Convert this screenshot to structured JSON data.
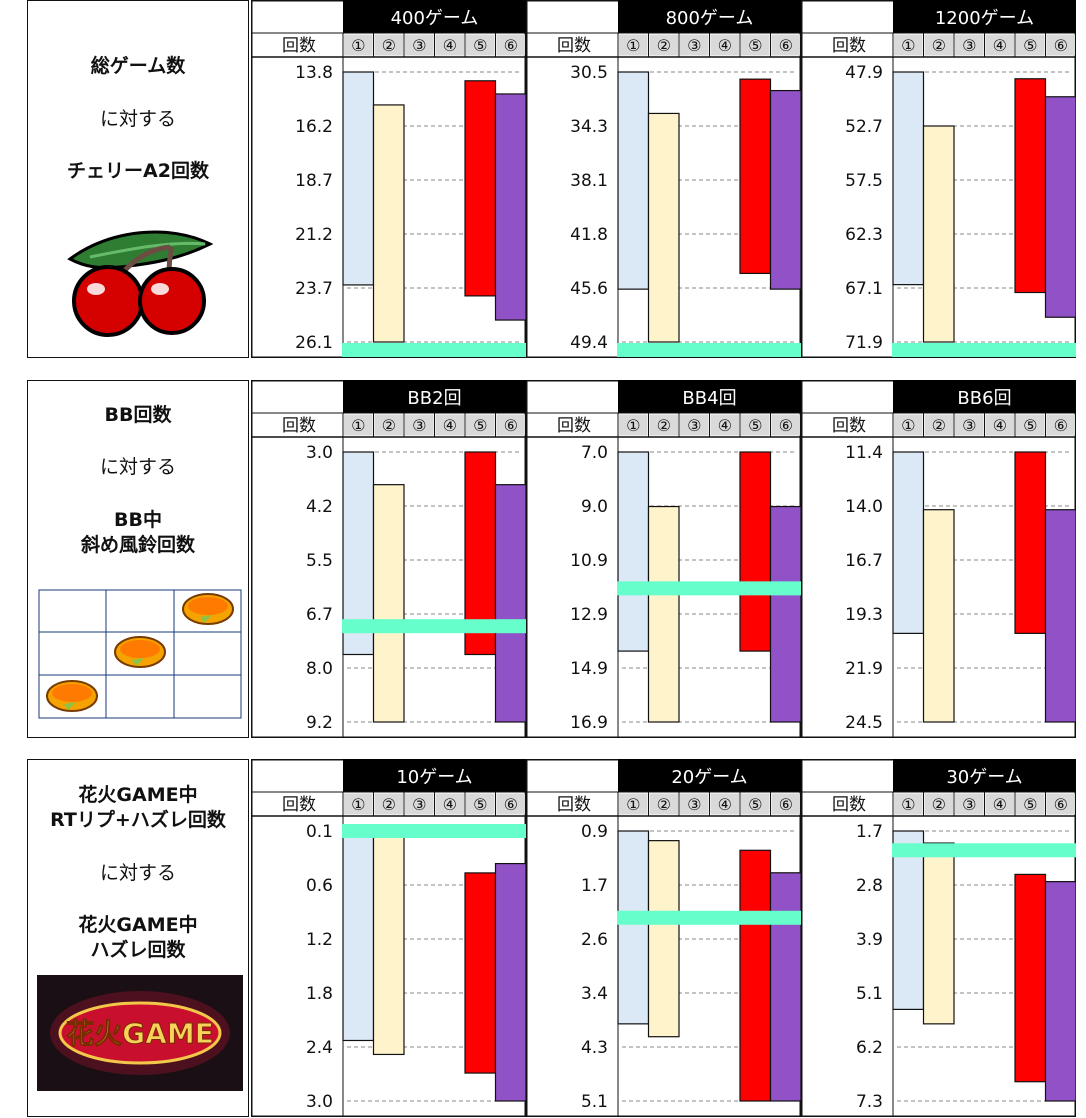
{
  "colors": {
    "setting1": "#dbe8f5",
    "setting2": "#fff3cc",
    "setting5": "#ff0000",
    "setting6": "#9152c8",
    "marker": "#66ffcc",
    "header_bg": "#000000",
    "header_text": "#ffffff",
    "setting_cell_bg": "#d9d9d9"
  },
  "sections": [
    {
      "labels": {
        "line1": "総ゲーム数",
        "line2": "に対する",
        "line3": "チェリーA2回数",
        "line4": ""
      },
      "image_icon": "cherry-icon",
      "charts": [
        {
          "title": "400ゲーム"
        },
        {
          "title": "800ゲーム"
        },
        {
          "title": "1200ゲーム"
        }
      ]
    },
    {
      "labels": {
        "line1": "BB回数",
        "line2": "に対する",
        "line3": "BB中",
        "line4": "斜め風鈴回数"
      },
      "image_icon": "bell-grid-icon",
      "charts": [
        {
          "title": "BB2回"
        },
        {
          "title": "BB4回"
        },
        {
          "title": "BB6回"
        }
      ]
    },
    {
      "labels": {
        "line1": "花火GAME中",
        "line2": "RTリプ+ハズレ回数",
        "line3": "に対する",
        "line4": "花火GAME中",
        "line5": "ハズレ回数"
      },
      "image_icon": "hanabi-game-logo-icon",
      "image_text": "花火GAME",
      "charts": [
        {
          "title": "10ゲーム"
        },
        {
          "title": "20ゲーム"
        },
        {
          "title": "30ゲーム"
        }
      ]
    }
  ],
  "axis_header": "回数",
  "settings": [
    "①",
    "②",
    "③",
    "④",
    "⑤",
    "⑥"
  ],
  "chart_data": [
    {
      "type": "bar",
      "title": "400ゲーム",
      "ylabel": "回数",
      "inverted_axis": true,
      "ylim": [
        13.8,
        26.1
      ],
      "ticks": [
        "13.8",
        "16.2",
        "18.7",
        "21.2",
        "23.7",
        "26.1"
      ],
      "categories": [
        "①",
        "②",
        "③",
        "④",
        "⑤",
        "⑥"
      ],
      "bars": [
        [
          13.8,
          23.5
        ],
        [
          15.3,
          26.1
        ],
        null,
        null,
        [
          14.2,
          24.0
        ],
        [
          14.8,
          25.1
        ]
      ],
      "marker": 26.6
    },
    {
      "type": "bar",
      "title": "800ゲーム",
      "ylabel": "回数",
      "inverted_axis": true,
      "ylim": [
        30.5,
        49.4
      ],
      "ticks": [
        "30.5",
        "34.3",
        "38.1",
        "41.8",
        "45.6",
        "49.4"
      ],
      "categories": [
        "①",
        "②",
        "③",
        "④",
        "⑤",
        "⑥"
      ],
      "bars": [
        [
          30.5,
          45.7
        ],
        [
          33.4,
          49.4
        ],
        null,
        null,
        [
          31.0,
          44.6
        ],
        [
          31.8,
          45.7
        ]
      ],
      "marker": 50.2
    },
    {
      "type": "bar",
      "title": "1200ゲーム",
      "ylabel": "回数",
      "inverted_axis": true,
      "ylim": [
        47.9,
        71.9
      ],
      "ticks": [
        "47.9",
        "52.7",
        "57.5",
        "62.3",
        "67.1",
        "71.9"
      ],
      "categories": [
        "①",
        "②",
        "③",
        "④",
        "⑤",
        "⑥"
      ],
      "bars": [
        [
          47.9,
          66.8
        ],
        [
          52.7,
          71.9
        ],
        null,
        null,
        [
          48.5,
          67.5
        ],
        [
          50.1,
          69.7
        ]
      ],
      "marker": 72.9
    },
    {
      "type": "bar",
      "title": "BB2回",
      "ylabel": "回数",
      "inverted_axis": true,
      "ylim": [
        3.0,
        9.2
      ],
      "ticks": [
        "3.0",
        "4.2",
        "5.5",
        "6.7",
        "8.0",
        "9.2"
      ],
      "categories": [
        "①",
        "②",
        "③",
        "④",
        "⑤",
        "⑥"
      ],
      "bars": [
        [
          3.0,
          7.65
        ],
        [
          3.75,
          9.2
        ],
        null,
        null,
        [
          3.0,
          7.65
        ],
        [
          3.75,
          9.2
        ]
      ],
      "marker": 7.0
    },
    {
      "type": "bar",
      "title": "BB4回",
      "ylabel": "回数",
      "inverted_axis": true,
      "ylim": [
        7.0,
        16.9
      ],
      "ticks": [
        "7.0",
        "9.0",
        "10.9",
        "12.9",
        "14.9",
        "16.9"
      ],
      "categories": [
        "①",
        "②",
        "③",
        "④",
        "⑤",
        "⑥"
      ],
      "bars": [
        [
          7.0,
          14.3
        ],
        [
          9.0,
          16.9
        ],
        null,
        null,
        [
          7.0,
          14.3
        ],
        [
          9.0,
          16.9
        ]
      ],
      "marker": 12.0
    },
    {
      "type": "bar",
      "title": "BB6回",
      "ylabel": "回数",
      "inverted_axis": true,
      "ylim": [
        11.4,
        24.5
      ],
      "ticks": [
        "11.4",
        "14.0",
        "16.7",
        "19.3",
        "21.9",
        "24.5"
      ],
      "categories": [
        "①",
        "②",
        "③",
        "④",
        "⑤",
        "⑥"
      ],
      "bars": [
        [
          11.4,
          20.2
        ],
        [
          14.2,
          24.5
        ],
        null,
        null,
        [
          11.4,
          20.2
        ],
        [
          14.2,
          24.5
        ]
      ],
      "marker": null
    },
    {
      "type": "bar",
      "title": "10ゲーム",
      "ylabel": "回数",
      "inverted_axis": true,
      "ylim": [
        0.1,
        3.0
      ],
      "ticks": [
        "0.1",
        "0.6",
        "1.2",
        "1.8",
        "2.4",
        "3.0"
      ],
      "categories": [
        "①",
        "②",
        "③",
        "④",
        "⑤",
        "⑥"
      ],
      "bars": [
        [
          0.1,
          2.35
        ],
        [
          0.1,
          2.5
        ],
        null,
        null,
        [
          0.55,
          2.7
        ],
        [
          0.45,
          3.0
        ]
      ],
      "marker": 0.1
    },
    {
      "type": "bar",
      "title": "20ゲーム",
      "ylabel": "回数",
      "inverted_axis": true,
      "ylim": [
        0.9,
        5.1
      ],
      "ticks": [
        "0.9",
        "1.7",
        "2.6",
        "3.4",
        "4.3",
        "5.1"
      ],
      "categories": [
        "①",
        "②",
        "③",
        "④",
        "⑤",
        "⑥"
      ],
      "bars": [
        [
          0.9,
          3.9
        ],
        [
          1.05,
          4.1
        ],
        null,
        null,
        [
          1.2,
          5.1
        ],
        [
          1.55,
          5.1
        ]
      ],
      "marker": 2.25
    },
    {
      "type": "bar",
      "title": "30ゲーム",
      "ylabel": "回数",
      "inverted_axis": true,
      "ylim": [
        1.7,
        7.3
      ],
      "ticks": [
        "1.7",
        "2.8",
        "3.9",
        "5.1",
        "6.2",
        "7.3"
      ],
      "categories": [
        "①",
        "②",
        "③",
        "④",
        "⑤",
        "⑥"
      ],
      "bars": [
        [
          1.7,
          5.4
        ],
        [
          1.95,
          5.7
        ],
        null,
        null,
        [
          2.6,
          6.9
        ],
        [
          2.75,
          7.3
        ]
      ],
      "marker": 2.1
    }
  ]
}
